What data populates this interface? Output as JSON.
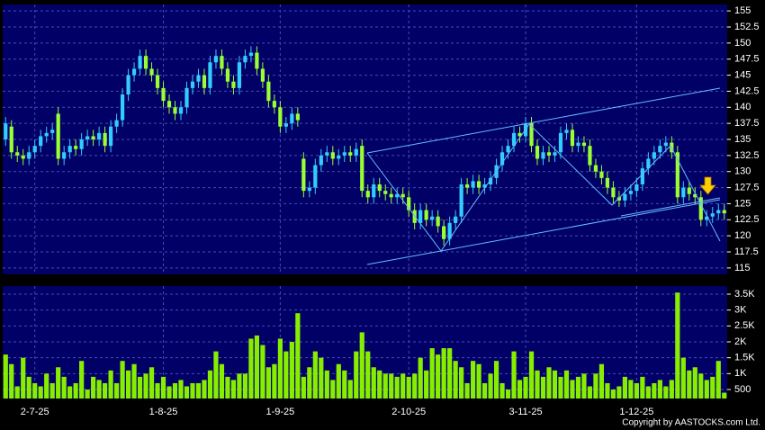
{
  "chart_data": {
    "type": "candlestick",
    "categories": [
      null,
      null,
      null,
      null,
      null,
      "2-7-25",
      null,
      null,
      null,
      null,
      null,
      null,
      null,
      null,
      null,
      null,
      null,
      null,
      null,
      null,
      null,
      null,
      null,
      null,
      null,
      null,
      null,
      "1-8-25",
      null,
      null,
      null,
      null,
      null,
      null,
      null,
      null,
      null,
      null,
      null,
      null,
      null,
      null,
      null,
      null,
      null,
      null,
      null,
      "1-9-25",
      null,
      null,
      null,
      null,
      null,
      null,
      null,
      null,
      null,
      null,
      null,
      null,
      null,
      null,
      null,
      null,
      null,
      null,
      null,
      null,
      null,
      "2-10-25",
      null,
      null,
      null,
      null,
      null,
      null,
      null,
      null,
      null,
      null,
      null,
      null,
      null,
      null,
      null,
      null,
      null,
      null,
      null,
      "3-11-25",
      null,
      null,
      null,
      null,
      null,
      null,
      null,
      null,
      null,
      null,
      null,
      null,
      null,
      null,
      null,
      null,
      null,
      null,
      "1-12-25",
      null,
      null,
      null,
      null,
      null,
      null,
      null,
      null,
      null,
      null,
      null,
      null,
      null,
      null,
      null
    ],
    "open": [
      135,
      137,
      133,
      132.5,
      132,
      133,
      134,
      135.5,
      136,
      139,
      132,
      133,
      134,
      133.5,
      135,
      135.5,
      135,
      136,
      134,
      137,
      138,
      142,
      145,
      146,
      148,
      146,
      145,
      143,
      141,
      140,
      139,
      140,
      143,
      144,
      145,
      143,
      147,
      148,
      146,
      144,
      143,
      147,
      148,
      148.5,
      146,
      144,
      141,
      140,
      137,
      137.5,
      139,
      132,
      127,
      127.5,
      131,
      132.5,
      133,
      132,
      132.5,
      133,
      132.5,
      134,
      127,
      126,
      128,
      127,
      126.5,
      126,
      126.5,
      126,
      124,
      122,
      124,
      122.5,
      123,
      121.5,
      119.5,
      122,
      123,
      128,
      127.5,
      128.5,
      127.5,
      128,
      129,
      131,
      133,
      134,
      136,
      135.5,
      137.5,
      134,
      132,
      133,
      132.5,
      133,
      136,
      136.5,
      134,
      134.5,
      134,
      131,
      130,
      129,
      127.5,
      126,
      125.5,
      126.5,
      127,
      128,
      130.5,
      132,
      133,
      134,
      134.5,
      133,
      126,
      127.5,
      126.5,
      126,
      122.5,
      123,
      123.5,
      124
    ],
    "high": [
      138.5,
      138,
      134,
      133.5,
      134,
      135,
      136.5,
      137,
      137.5,
      140,
      134,
      135,
      135,
      136,
      136.5,
      136.5,
      137,
      137,
      138,
      139,
      143,
      146,
      147,
      149,
      149,
      147,
      146,
      144,
      142,
      141,
      141,
      144,
      145,
      146,
      146,
      148,
      149,
      149,
      147,
      145,
      148,
      149,
      149.5,
      149.5,
      147,
      145,
      142,
      141,
      138.5,
      140,
      140,
      133,
      128.5,
      132,
      133.5,
      134,
      134,
      133.5,
      134,
      134,
      134.5,
      135,
      128,
      129,
      129,
      128,
      127.5,
      127.5,
      127.5,
      127,
      125,
      125,
      125,
      124,
      124,
      122.5,
      123,
      124,
      129,
      129,
      129.5,
      129.5,
      129,
      130,
      132,
      134,
      135,
      137,
      137,
      138.5,
      138.5,
      135,
      134,
      134,
      134,
      137,
      137.5,
      137.5,
      135.5,
      135.5,
      135,
      132,
      131,
      130,
      128.5,
      127,
      127.5,
      128,
      129,
      131.5,
      133,
      134,
      135,
      135.5,
      135.5,
      134,
      128.5,
      128.5,
      127.5,
      127,
      124,
      124.5,
      125,
      125
    ],
    "low": [
      134,
      132,
      131.5,
      131,
      131,
      132,
      133,
      134.5,
      135,
      131,
      131,
      132,
      132.5,
      132.5,
      134,
      134,
      134,
      133,
      133,
      136,
      137,
      141,
      144,
      145,
      145,
      144,
      142,
      140,
      139,
      138,
      138,
      139,
      142,
      143,
      142,
      142,
      146,
      145,
      143,
      142,
      142,
      146,
      147,
      145,
      143,
      140,
      139,
      136,
      136,
      136.5,
      137,
      126,
      126,
      126.5,
      130,
      131.5,
      131,
      131,
      131.5,
      131.5,
      131.5,
      126,
      125,
      125,
      126,
      125.5,
      125,
      125,
      125,
      123,
      121,
      121,
      121.5,
      121.5,
      120.5,
      118.5,
      118.5,
      121,
      122,
      126.5,
      126.5,
      126.5,
      126.5,
      127,
      128,
      130,
      132,
      133,
      134.5,
      134.5,
      133,
      131,
      131,
      131.5,
      131.5,
      132,
      135,
      133,
      133,
      133,
      130,
      129,
      128,
      126.5,
      125,
      124.5,
      124.5,
      125.5,
      126,
      127,
      129.5,
      131,
      132,
      133,
      132,
      125,
      125,
      125.5,
      125,
      121.5,
      121.5,
      122,
      122.5,
      122.5
    ],
    "close": [
      137.5,
      133,
      132.5,
      132,
      133,
      134,
      135.5,
      136,
      136.5,
      132,
      133,
      134,
      133.5,
      135,
      135.5,
      135,
      136,
      134,
      137,
      138,
      142,
      145,
      146,
      148,
      146,
      145,
      143,
      141,
      140,
      139,
      140,
      143,
      144,
      145,
      143,
      147,
      148,
      146,
      144,
      143,
      147,
      148,
      148.5,
      146,
      144,
      141,
      140,
      137,
      137.5,
      139,
      138,
      127,
      127.5,
      131,
      132.5,
      133,
      132,
      132.5,
      133,
      132.5,
      133.5,
      127,
      126,
      128,
      127,
      126.5,
      126,
      126.5,
      126,
      124,
      122,
      124,
      122.5,
      123,
      121.5,
      119.5,
      122,
      123,
      128,
      127.5,
      128.5,
      127.5,
      128,
      129,
      131,
      133,
      134,
      136,
      135.5,
      137.5,
      134,
      132,
      133,
      132.5,
      133,
      136,
      136.5,
      134,
      134.5,
      134,
      131,
      130,
      129,
      127.5,
      126,
      125.5,
      126.5,
      127,
      128,
      130.5,
      132,
      133,
      134,
      134.5,
      133,
      126,
      127.5,
      126.5,
      126,
      122.5,
      123,
      123.5,
      124,
      123.5
    ],
    "volume": [
      1600,
      1300,
      600,
      1500,
      900,
      700,
      600,
      1000,
      700,
      1200,
      900,
      600,
      700,
      1400,
      500,
      900,
      800,
      700,
      1100,
      700,
      1400,
      1100,
      1300,
      900,
      1000,
      1200,
      700,
      900,
      600,
      700,
      800,
      600,
      700,
      700,
      800,
      1100,
      1700,
      1300,
      900,
      800,
      1000,
      1000,
      2100,
      2200,
      1900,
      1200,
      1300,
      2100,
      1700,
      2000,
      2900,
      900,
      1200,
      1700,
      1500,
      1100,
      800,
      1300,
      1100,
      800,
      1700,
      2300,
      1700,
      1200,
      1100,
      1000,
      1000,
      900,
      1000,
      900,
      1000,
      1500,
      1100,
      1800,
      1600,
      1800,
      1800,
      1400,
      1200,
      700,
      1400,
      1300,
      700,
      1000,
      1400,
      700,
      500,
      1700,
      800,
      900,
      1700,
      1100,
      900,
      1200,
      1100,
      900,
      1100,
      800,
      900,
      1000,
      600,
      1000,
      1300,
      700,
      500,
      600,
      900,
      800,
      700,
      900,
      600,
      700,
      800,
      600,
      800,
      3550,
      1500,
      1100,
      1200,
      1000,
      800,
      900,
      1400,
      400
    ],
    "up_color": "#33ccff",
    "down_color": "#99ff33",
    "volume_color": "#88ee00",
    "ylim": [
      114,
      156
    ],
    "yticks": [
      115,
      117.5,
      120,
      122.5,
      125,
      127.5,
      130,
      132.5,
      135,
      137.5,
      140,
      142.5,
      145,
      147.5,
      150,
      152.5,
      155
    ],
    "volume_ylim": [
      217,
      3755
    ],
    "volume_ticks": [
      {
        "value": 500,
        "label": "500"
      },
      {
        "value": 1000,
        "label": "1K"
      },
      {
        "value": 1500,
        "label": "1.5K"
      },
      {
        "value": 2000,
        "label": "2K"
      },
      {
        "value": 2500,
        "label": "2.5K"
      },
      {
        "value": 3000,
        "label": "3K"
      },
      {
        "value": 3500,
        "label": "3.5K"
      }
    ],
    "grid": true,
    "credit": "Copyright by AASTOCKS.com Ltd."
  }
}
